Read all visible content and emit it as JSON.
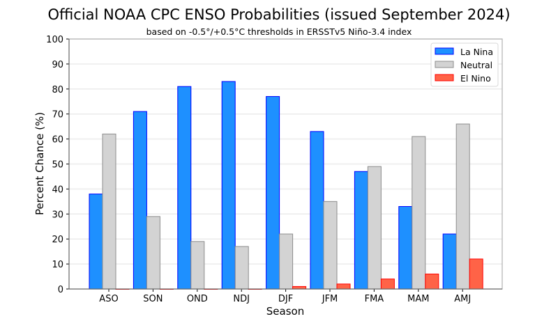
{
  "chart_data": {
    "type": "bar",
    "title": "Official NOAA CPC ENSO Probabilities (issued September 2024)",
    "subtitle": "based on -0.5°/+0.5°C thresholds in ERSSTv5 Niño-3.4 index",
    "xlabel": "Season",
    "ylabel": "Percent Chance (%)",
    "ylim": [
      0,
      100
    ],
    "yticks": [
      "0",
      "10",
      "20",
      "30",
      "40",
      "50",
      "60",
      "70",
      "80",
      "90",
      "100"
    ],
    "grid": true,
    "legend_position": "top-right",
    "categories": [
      "ASO",
      "SON",
      "OND",
      "NDJ",
      "DJF",
      "JFM",
      "FMA",
      "MAM",
      "AMJ"
    ],
    "series": [
      {
        "name": "La Nina",
        "color": "#1e90ff",
        "edge": "#0000ff",
        "values": [
          38,
          71,
          81,
          83,
          77,
          63,
          47,
          33,
          22
        ]
      },
      {
        "name": "Neutral",
        "color": "#d3d3d3",
        "edge": "#8c8c8c",
        "values": [
          62,
          29,
          19,
          17,
          22,
          35,
          49,
          61,
          66
        ]
      },
      {
        "name": "El Nino",
        "color": "#ff6347",
        "edge": "#ff0000",
        "values": [
          0,
          0,
          0,
          0,
          1,
          2,
          4,
          6,
          12
        ]
      }
    ]
  }
}
